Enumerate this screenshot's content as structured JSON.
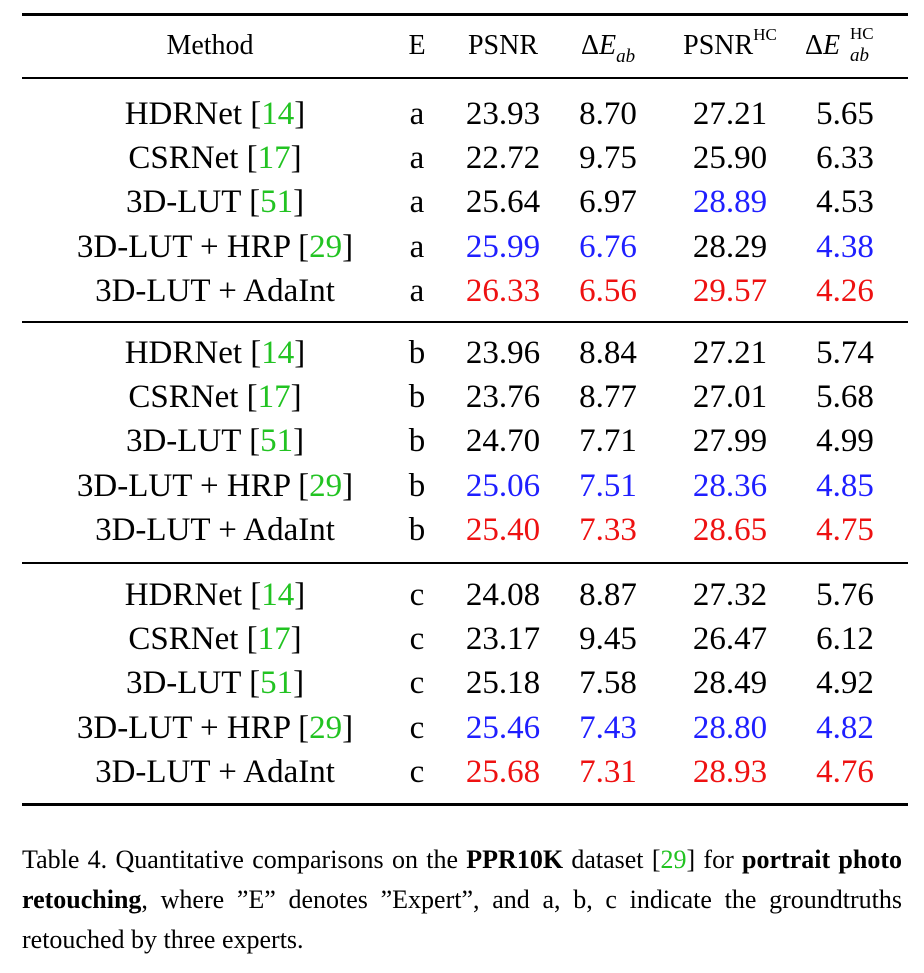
{
  "table": {
    "headers": {
      "method": "Method",
      "e": "E",
      "psnr": "PSNR",
      "delta_e_prefix": "Δ",
      "delta_e_var": "E",
      "delta_e_sub": "ab",
      "psnr_hc": "PSNR",
      "psnr_hc_sup": "HC",
      "delta_e_hc_prefix": "Δ",
      "delta_e_hc_var": "E",
      "delta_e_hc_sup": "HC",
      "delta_e_hc_sub": "ab"
    },
    "groups": [
      {
        "rows": [
          {
            "method": "HDRNet ",
            "ref": "14",
            "e": "a",
            "psnr": "23.93",
            "de": "8.70",
            "psnr_hc": "27.21",
            "de_hc": "5.65"
          },
          {
            "method": "CSRNet ",
            "ref": "17",
            "e": "a",
            "psnr": "22.72",
            "de": "9.75",
            "psnr_hc": "25.90",
            "de_hc": "6.33"
          },
          {
            "method": "3D-LUT ",
            "ref": "51",
            "e": "a",
            "psnr": "25.64",
            "de": "6.97",
            "psnr_hc": "28.89",
            "de_hc": "4.53"
          },
          {
            "method": "3D-LUT + HRP ",
            "ref": "29",
            "e": "a",
            "psnr": "25.99",
            "de": "6.76",
            "psnr_hc": "28.29",
            "de_hc": "4.38"
          },
          {
            "method": "3D-LUT + AdaInt",
            "ref": "",
            "e": "a",
            "psnr": "26.33",
            "de": "6.56",
            "psnr_hc": "29.57",
            "de_hc": "4.26"
          }
        ]
      },
      {
        "rows": [
          {
            "method": "HDRNet ",
            "ref": "14",
            "e": "b",
            "psnr": "23.96",
            "de": "8.84",
            "psnr_hc": "27.21",
            "de_hc": "5.74"
          },
          {
            "method": "CSRNet ",
            "ref": "17",
            "e": "b",
            "psnr": "23.76",
            "de": "8.77",
            "psnr_hc": "27.01",
            "de_hc": "5.68"
          },
          {
            "method": "3D-LUT ",
            "ref": "51",
            "e": "b",
            "psnr": "24.70",
            "de": "7.71",
            "psnr_hc": "27.99",
            "de_hc": "4.99"
          },
          {
            "method": "3D-LUT + HRP ",
            "ref": "29",
            "e": "b",
            "psnr": "25.06",
            "de": "7.51",
            "psnr_hc": "28.36",
            "de_hc": "4.85"
          },
          {
            "method": "3D-LUT + AdaInt",
            "ref": "",
            "e": "b",
            "psnr": "25.40",
            "de": "7.33",
            "psnr_hc": "28.65",
            "de_hc": "4.75"
          }
        ]
      },
      {
        "rows": [
          {
            "method": "HDRNet ",
            "ref": "14",
            "e": "c",
            "psnr": "24.08",
            "de": "8.87",
            "psnr_hc": "27.32",
            "de_hc": "5.76"
          },
          {
            "method": "CSRNet ",
            "ref": "17",
            "e": "c",
            "psnr": "23.17",
            "de": "9.45",
            "psnr_hc": "26.47",
            "de_hc": "6.12"
          },
          {
            "method": "3D-LUT ",
            "ref": "51",
            "e": "c",
            "psnr": "25.18",
            "de": "7.58",
            "psnr_hc": "28.49",
            "de_hc": "4.92"
          },
          {
            "method": "3D-LUT + HRP ",
            "ref": "29",
            "e": "c",
            "psnr": "25.46",
            "de": "7.43",
            "psnr_hc": "28.80",
            "de_hc": "4.82"
          },
          {
            "method": "3D-LUT + AdaInt",
            "ref": "",
            "e": "c",
            "psnr": "25.68",
            "de": "7.31",
            "psnr_hc": "28.93",
            "de_hc": "4.76"
          }
        ]
      }
    ],
    "highlight_colors": {
      "best": "#ee1111",
      "second": "#1f1fff",
      "citation": "#22c322"
    }
  },
  "caption": {
    "p1": "Table 4.  Quantitative comparisons on the ",
    "b1": "PPR10K",
    "p2": " dataset [",
    "ref": "29",
    "p3": "] for ",
    "b2": "portrait photo retouching",
    "p4": ", where ”E” denotes ”Expert”, and a, b, c indicate the groundtruths retouched by three experts."
  }
}
